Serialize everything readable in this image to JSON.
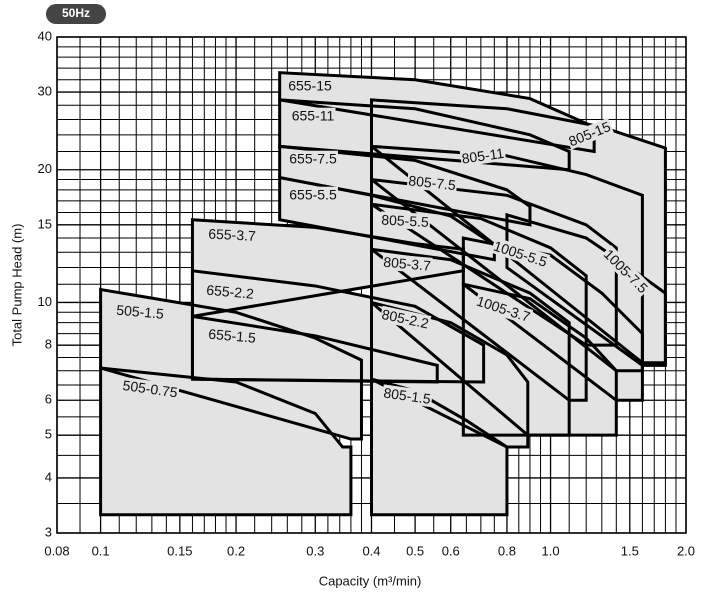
{
  "chart_data": {
    "type": "region",
    "badge": "50Hz",
    "xlabel": "Capacity (m³/min)",
    "ylabel": "Total Pump Head (m)",
    "xscale": "log",
    "yscale": "log",
    "grid": true,
    "xlim": [
      0.08,
      2.0
    ],
    "ylim": [
      3,
      40
    ],
    "xticks": [
      0.08,
      0.1,
      0.15,
      0.2,
      0.3,
      0.4,
      0.5,
      0.6,
      0.8,
      {
        "value": 1,
        "label": "1.0"
      },
      1.5,
      {
        "value": 2,
        "label": "2.0"
      }
    ],
    "yticks": [
      3,
      4,
      5,
      6,
      8,
      10,
      15,
      20,
      30,
      40
    ],
    "xgrid": [
      0.09,
      0.11,
      0.12,
      0.13,
      0.14,
      0.16,
      0.17,
      0.18,
      0.19,
      0.22,
      0.24,
      0.26,
      0.28,
      0.32,
      0.34,
      0.36,
      0.38,
      0.45,
      0.55,
      0.65,
      0.7,
      0.75,
      0.85,
      0.9,
      0.95,
      1.1,
      1.2,
      1.3,
      1.4,
      1.6,
      1.7,
      1.8,
      1.9
    ],
    "ygrid": [
      3.5,
      4.5,
      5.5,
      6.5,
      7,
      7.5,
      8.5,
      9,
      9.5,
      11,
      12,
      13,
      14,
      16,
      17,
      18,
      19,
      22,
      24,
      26,
      28,
      32,
      34,
      36,
      38
    ],
    "color": "#e3e3e3",
    "series": [
      {
        "name": "505-0.75",
        "x": [
          0.1,
          0.1,
          0.2,
          0.3,
          0.345,
          0.36,
          0.36
        ],
        "y": [
          3.3,
          7.1,
          6.6,
          5.6,
          4.7,
          4.7,
          3.3
        ]
      },
      {
        "name": "505-1.5",
        "x": [
          0.1,
          0.1,
          0.2,
          0.3,
          0.38,
          0.38,
          0.36
        ],
        "y": [
          7.1,
          10.7,
          9.5,
          8.3,
          7.4,
          4.9,
          4.9
        ]
      },
      {
        "name": "655-1.5",
        "x": [
          0.16,
          0.16,
          0.3,
          0.45,
          0.56,
          0.56
        ],
        "y": [
          6.7,
          9.3,
          8.4,
          7.6,
          7.2,
          6.6
        ]
      },
      {
        "name": "655-2.2",
        "x": [
          0.16,
          0.16,
          0.3,
          0.5,
          0.71,
          0.71
        ],
        "y": [
          6.7,
          11.8,
          10.9,
          9.8,
          8.0,
          6.6
        ]
      },
      {
        "name": "655-3.7",
        "x": [
          0.16,
          0.16,
          0.3,
          0.5,
          0.64,
          0.64
        ],
        "y": [
          9.3,
          15.4,
          14.8,
          13.6,
          13.2,
          11.8
        ]
      },
      {
        "name": "655-5.5",
        "x": [
          0.25,
          0.25,
          0.4,
          0.6,
          0.75,
          0.75
        ],
        "y": [
          15.4,
          19.2,
          17.5,
          15.7,
          13.5,
          12.5
        ]
      },
      {
        "name": "655-7.5",
        "x": [
          0.25,
          0.25,
          0.5,
          0.8,
          0.9,
          0.9
        ],
        "y": [
          19.2,
          22.6,
          21,
          18,
          16.5,
          15
        ]
      },
      {
        "name": "655-11",
        "x": [
          0.25,
          0.25,
          0.5,
          0.9,
          1.1,
          1.1
        ],
        "y": [
          22.6,
          28.8,
          27.5,
          24,
          22,
          20
        ]
      },
      {
        "name": "655-15",
        "x": [
          0.25,
          0.25,
          0.5,
          0.9,
          1.25,
          1.25
        ],
        "y": [
          28.8,
          33.2,
          32,
          29,
          25,
          22
        ]
      },
      {
        "name": "805-1.5",
        "x": [
          0.4,
          0.4,
          0.5,
          0.65,
          0.8,
          0.8
        ],
        "y": [
          3.3,
          6.7,
          6.3,
          5.4,
          4.7,
          3.3
        ]
      },
      {
        "name": "805-2.2",
        "x": [
          0.4,
          0.4,
          0.6,
          0.8,
          0.89,
          0.89,
          0.8
        ],
        "y": [
          6.7,
          10.0,
          9.0,
          7.6,
          6.6,
          4.7,
          4.7
        ]
      },
      {
        "name": "805-3.7",
        "x": [
          0.4,
          0.4,
          0.6,
          0.9,
          1.1,
          1.1,
          0.89
        ],
        "y": [
          10.0,
          13.2,
          12.5,
          10.5,
          9.0,
          5.0,
          5.0
        ]
      },
      {
        "name": "805-5.5",
        "x": [
          0.4,
          0.4,
          0.7,
          1.0,
          1.2,
          1.2,
          1.1
        ],
        "y": [
          13.2,
          16.7,
          15.5,
          13.3,
          11.5,
          6.0,
          6.0
        ]
      },
      {
        "name": "805-7.5",
        "x": [
          0.4,
          0.4,
          0.8,
          1.2,
          1.4,
          1.4,
          1.2
        ],
        "y": [
          16.7,
          19.0,
          17.5,
          15,
          13.3,
          8,
          8
        ]
      },
      {
        "name": "805-11",
        "x": [
          0.4,
          0.4,
          0.8,
          1.2,
          1.6,
          1.6,
          1.4
        ],
        "y": [
          19,
          22.6,
          21.5,
          19.5,
          17.5,
          7,
          7
        ]
      },
      {
        "name": "805-15",
        "x": [
          0.4,
          0.4,
          0.8,
          1.3,
          1.8,
          1.8,
          1.6
        ],
        "y": [
          22.6,
          28.8,
          27.5,
          25,
          22.4,
          7.3,
          7.3
        ]
      },
      {
        "name": "1005-3.7",
        "x": [
          0.64,
          0.64,
          0.9,
          1.2,
          1.4,
          1.4
        ],
        "y": [
          5.0,
          11,
          10.2,
          8.3,
          7.0,
          5.0
        ]
      },
      {
        "name": "1005-5.5",
        "x": [
          0.64,
          0.64,
          1.0,
          1.3,
          1.6,
          1.6,
          1.4
        ],
        "y": [
          11,
          14,
          12.8,
          10.5,
          8.5,
          6.0,
          6.0
        ]
      },
      {
        "name": "1005-7.5",
        "x": [
          0.8,
          0.8,
          1.2,
          1.5,
          1.8,
          1.8,
          1.6
        ],
        "y": [
          12,
          15.8,
          14,
          12,
          10.5,
          7.2,
          7.2
        ]
      }
    ]
  }
}
